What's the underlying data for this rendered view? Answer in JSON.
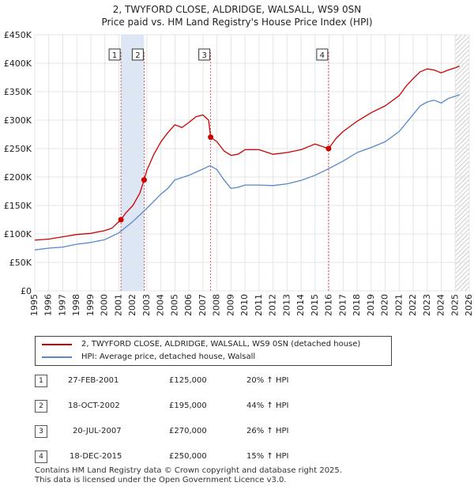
{
  "header": {
    "line1": "2, TWYFORD CLOSE, ALDRIDGE, WALSALL, WS9 0SN",
    "line2": "Price paid vs. HM Land Registry's House Price Index (HPI)"
  },
  "colors": {
    "price": "#cc0000",
    "hpi": "#5588cc",
    "shade": "#dde6f4",
    "grid": "#e4e4e4"
  },
  "legend": {
    "price_label": "2, TWYFORD CLOSE, ALDRIDGE, WALSALL, WS9 0SN (detached house)",
    "hpi_label": "HPI: Average price, detached house, Walsall"
  },
  "sales": [
    {
      "num": "1",
      "date": "27-FEB-2001",
      "price": "£125,000",
      "hpi": "20% ↑ HPI"
    },
    {
      "num": "2",
      "date": "18-OCT-2002",
      "price": "£195,000",
      "hpi": "44% ↑ HPI"
    },
    {
      "num": "3",
      "date": "20-JUL-2007",
      "price": "£270,000",
      "hpi": "26% ↑ HPI"
    },
    {
      "num": "4",
      "date": "18-DEC-2015",
      "price": "£250,000",
      "hpi": "15% ↑ HPI"
    }
  ],
  "footer": {
    "line1": "Contains HM Land Registry data © Crown copyright and database right 2025.",
    "line2": "This data is licensed under the Open Government Licence v3.0."
  },
  "chart_data": {
    "type": "line",
    "title": "Price paid vs. HM Land Registry's House Price Index (HPI)",
    "xlim": [
      1995,
      2026
    ],
    "ylim": [
      0,
      450000
    ],
    "y_ticks": [
      0,
      50000,
      100000,
      150000,
      200000,
      250000,
      300000,
      350000,
      400000,
      450000
    ],
    "y_tick_labels": [
      "£0",
      "£50K",
      "£100K",
      "£150K",
      "£200K",
      "£250K",
      "£300K",
      "£350K",
      "£400K",
      "£450K"
    ],
    "x_ticks": [
      1995,
      1996,
      1997,
      1998,
      1999,
      2000,
      2001,
      2002,
      2003,
      2004,
      2005,
      2006,
      2007,
      2008,
      2009,
      2010,
      2011,
      2012,
      2013,
      2014,
      2015,
      2016,
      2017,
      2018,
      2019,
      2020,
      2021,
      2022,
      2023,
      2024,
      2025,
      2026
    ],
    "x_tick_labels": [
      "1995",
      "1996",
      "1997",
      "1998",
      "1999",
      "2000",
      "2001",
      "2002",
      "2003",
      "2004",
      "2005",
      "2006",
      "2007",
      "2008",
      "2009",
      "2010",
      "2011",
      "2012",
      "2013",
      "2014",
      "2015",
      "2016",
      "2017",
      "2018",
      "2019",
      "2020",
      "2021",
      "2022",
      "2023",
      "2024",
      "2025",
      "2026"
    ],
    "shaded_ranges": [
      [
        2001.15,
        2002.8
      ]
    ],
    "hatched_from": 2025.0,
    "markers": [
      {
        "label": "1",
        "x": 2001.15,
        "y": 125000
      },
      {
        "label": "2",
        "x": 2002.8,
        "y": 195000
      },
      {
        "label": "3",
        "x": 2007.55,
        "y": 270000
      },
      {
        "label": "4",
        "x": 2015.96,
        "y": 250000
      }
    ],
    "series": [
      {
        "name": "2, TWYFORD CLOSE, ALDRIDGE, WALSALL, WS9 0SN (detached house)",
        "color": "#cc0000",
        "x": [
          1995,
          1996,
          1997,
          1998,
          1999,
          2000,
          2000.5,
          2001.15,
          2001.5,
          2002,
          2002.5,
          2002.8,
          2003,
          2003.5,
          2004,
          2004.5,
          2005,
          2005.5,
          2006,
          2006.5,
          2007,
          2007.4,
          2007.55,
          2008,
          2008.5,
          2009,
          2009.5,
          2010,
          2011,
          2012,
          2013,
          2014,
          2015,
          2015.96,
          2016.5,
          2017,
          2018,
          2019,
          2020,
          2021,
          2021.5,
          2022,
          2022.5,
          2023,
          2023.5,
          2024,
          2024.5,
          2025,
          2025.3
        ],
        "y": [
          89000,
          91000,
          95000,
          99000,
          101000,
          106000,
          110000,
          125000,
          137000,
          150000,
          172000,
          195000,
          212000,
          240000,
          262000,
          278000,
          292000,
          287000,
          296000,
          306000,
          309000,
          300000,
          270000,
          262000,
          246000,
          238000,
          240000,
          248000,
          248000,
          240000,
          243000,
          248000,
          258000,
          250000,
          268000,
          280000,
          298000,
          313000,
          325000,
          343000,
          360000,
          373000,
          385000,
          390000,
          388000,
          383000,
          388000,
          392000,
          395000
        ]
      },
      {
        "name": "HPI: Average price, detached house, Walsall",
        "color": "#5588cc",
        "x": [
          1995,
          1996,
          1997,
          1998,
          1999,
          2000,
          2001,
          2002,
          2003,
          2004,
          2004.5,
          2005,
          2006,
          2007,
          2007.5,
          2008,
          2008.5,
          2009,
          2009.5,
          2010,
          2011,
          2012,
          2013,
          2014,
          2015,
          2016,
          2017,
          2018,
          2019,
          2020,
          2021,
          2022,
          2022.5,
          2023,
          2023.5,
          2024,
          2024.5,
          2025,
          2025.3
        ],
        "y": [
          72000,
          75000,
          77000,
          82000,
          85000,
          90000,
          102000,
          122000,
          145000,
          170000,
          180000,
          195000,
          203000,
          214000,
          220000,
          213000,
          195000,
          180000,
          182000,
          186000,
          186000,
          185000,
          188000,
          194000,
          203000,
          215000,
          228000,
          243000,
          252000,
          262000,
          280000,
          310000,
          325000,
          332000,
          335000,
          330000,
          338000,
          342000,
          345000
        ]
      }
    ]
  }
}
